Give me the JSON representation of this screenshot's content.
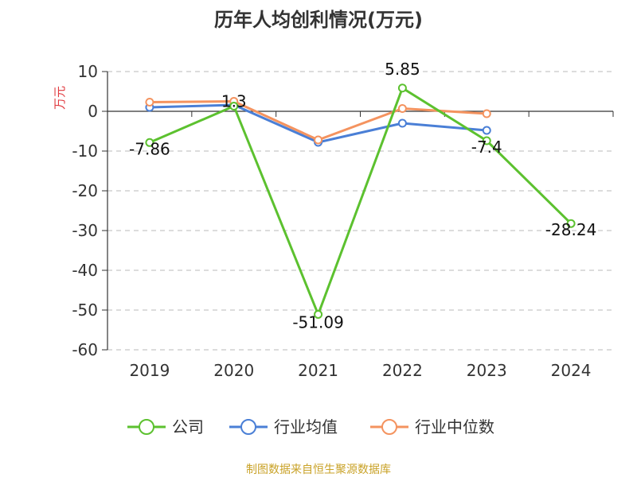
{
  "chart_data": {
    "type": "line",
    "title": "历年人均创利情况(万元)",
    "ylabel": "万元",
    "xlabel": "",
    "categories": [
      "2019",
      "2020",
      "2021",
      "2022",
      "2023",
      "2024"
    ],
    "ylim": [
      -60,
      10
    ],
    "yticks": [
      10,
      0,
      -10,
      -20,
      -30,
      -40,
      -50,
      -60
    ],
    "grid": true,
    "legend_position": "bottom",
    "series": [
      {
        "name": "公司",
        "color": "#5cc12f",
        "values": [
          -7.86,
          1.3,
          -51.09,
          5.85,
          -7.4,
          -28.24
        ],
        "labels": [
          "-7.86",
          "1.3",
          "-51.09",
          "5.85",
          "-7.4",
          "-28.24"
        ]
      },
      {
        "name": "行业均值",
        "color": "#4a7fd6",
        "values": [
          1.0,
          1.6,
          -7.8,
          -3.0,
          -4.8,
          null
        ]
      },
      {
        "name": "行业中位数",
        "color": "#f4935f",
        "values": [
          2.3,
          2.5,
          -7.2,
          0.7,
          -0.6,
          null
        ]
      }
    ]
  },
  "source": "制图数据来自恒生聚源数据库"
}
